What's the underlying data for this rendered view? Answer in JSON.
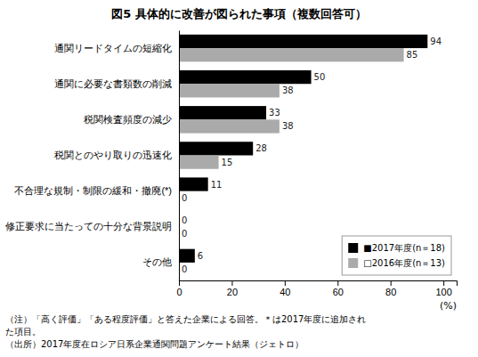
{
  "chart_data": {
    "type": "bar",
    "orientation": "horizontal",
    "title": "図5  具体的に改善が図られた事項（複数回答可）",
    "categories": [
      "通関リードタイムの短縮化",
      "通関に必要な書類数の削減",
      "税関検査頻度の減少",
      "税関とのやり取りの迅速化",
      "不合理な規制・制限の緩和・撤廃(*)",
      "修正要求に当たっての十分な背景説明",
      "その他"
    ],
    "series": [
      {
        "name": "■2017年度(n＝18)",
        "color": "#000000",
        "values": [
          94,
          50,
          33,
          28,
          11,
          0,
          6
        ]
      },
      {
        "name": "□2016年度(n＝13)",
        "color": "#aaaaaa",
        "values": [
          85,
          38,
          38,
          15,
          0,
          0,
          0
        ]
      }
    ],
    "xlabel": "(%)",
    "xlim": [
      0,
      105
    ],
    "xticks": [
      0,
      20,
      40,
      60,
      80,
      100
    ],
    "data_labels": true,
    "legend": "lower right",
    "grid": false,
    "annotations": [
      "（注）「高く評価」「ある程度評価」と答えた企業による回答。＊は2017年度に追加され",
      "た項目。",
      "（出所）2017年度在ロシア日系企業通関問題アンケート結果（ジェトロ）"
    ]
  }
}
